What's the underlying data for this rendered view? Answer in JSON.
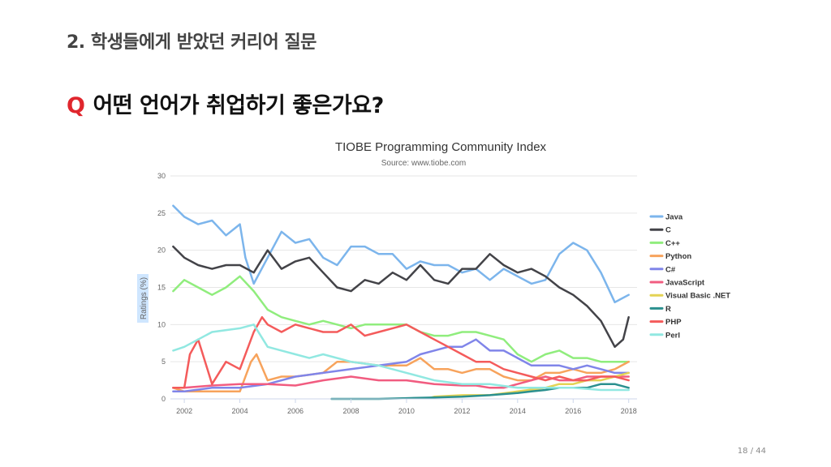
{
  "slide": {
    "heading": "2. 학생들에게 받았던 커리어 질문",
    "question_mark": "Q",
    "question_text": "어떤 언어가 취업하기 좋은가요?",
    "page_current": "18",
    "page_separator": "/",
    "page_total": "44"
  },
  "colors": {
    "question_mark": "#e0262d",
    "Java": "#7cb5ec",
    "C": "#434348",
    "C++": "#90ed7d",
    "Python": "#f7a35c",
    "C#": "#8085e9",
    "JavaScript": "#f15c80",
    "Visual Basic .NET": "#e4d354",
    "R": "#2b908f",
    "PHP": "#f45b5b",
    "Perl": "#91e8e1"
  },
  "chart_data": {
    "type": "line",
    "title": "TIOBE Programming Community Index",
    "subtitle": "Source: www.tiobe.com",
    "xlabel": "",
    "ylabel": "Ratings (%)",
    "xlim": [
      2001.5,
      2018.3
    ],
    "ylim": [
      0,
      30
    ],
    "x_ticks": [
      2002,
      2004,
      2006,
      2008,
      2010,
      2012,
      2014,
      2016,
      2018
    ],
    "y_ticks": [
      0,
      5,
      10,
      15,
      20,
      25,
      30
    ],
    "grid": true,
    "legend_position": "right",
    "series": [
      {
        "name": "Java",
        "color": "#7cb5ec",
        "x": [
          2001.6,
          2002,
          2002.5,
          2003,
          2003.5,
          2004,
          2004.2,
          2004.5,
          2005,
          2005.5,
          2006,
          2006.5,
          2007,
          2007.5,
          2008,
          2008.5,
          2009,
          2009.5,
          2010,
          2010.5,
          2011,
          2011.5,
          2012,
          2012.5,
          2013,
          2013.5,
          2014,
          2014.5,
          2015,
          2015.5,
          2016,
          2016.5,
          2017,
          2017.5,
          2018
        ],
        "values": [
          26,
          24.5,
          23.5,
          24,
          22,
          23.5,
          19,
          15.5,
          19,
          22.5,
          21,
          21.5,
          19,
          18,
          20.5,
          20.5,
          19.5,
          19.5,
          17.5,
          18.5,
          18,
          18,
          17,
          17.5,
          16,
          17.5,
          16.5,
          15.5,
          16,
          19.5,
          21,
          20,
          17,
          13,
          14
        ]
      },
      {
        "name": "C",
        "color": "#434348",
        "x": [
          2001.6,
          2002,
          2002.5,
          2003,
          2003.5,
          2004,
          2004.5,
          2005,
          2005.5,
          2006,
          2006.5,
          2007,
          2007.5,
          2008,
          2008.5,
          2009,
          2009.5,
          2010,
          2010.5,
          2011,
          2011.5,
          2012,
          2012.5,
          2013,
          2013.5,
          2014,
          2014.5,
          2015,
          2015.5,
          2016,
          2016.5,
          2017,
          2017.5,
          2017.8,
          2018
        ],
        "values": [
          20.5,
          19,
          18,
          17.5,
          18,
          18,
          17,
          20,
          17.5,
          18.5,
          19,
          17,
          15,
          14.5,
          16,
          15.5,
          17,
          16,
          18,
          16,
          15.5,
          17.5,
          17.5,
          19.5,
          18,
          17,
          17.5,
          16.5,
          15,
          14,
          12.5,
          10.5,
          7,
          8,
          11
        ]
      },
      {
        "name": "C++",
        "color": "#90ed7d",
        "x": [
          2001.6,
          2002,
          2002.5,
          2003,
          2003.5,
          2004,
          2004.5,
          2005,
          2005.5,
          2006,
          2006.5,
          2007,
          2007.5,
          2008,
          2008.5,
          2009,
          2009.5,
          2010,
          2010.5,
          2011,
          2011.5,
          2012,
          2012.5,
          2013,
          2013.5,
          2014,
          2014.5,
          2015,
          2015.5,
          2016,
          2016.5,
          2017,
          2017.5,
          2018
        ],
        "values": [
          14.5,
          16,
          15,
          14,
          15,
          16.5,
          14.5,
          12,
          11,
          10.5,
          10,
          10.5,
          10,
          9.5,
          10,
          10,
          10,
          10,
          9,
          8.5,
          8.5,
          9,
          9,
          8.5,
          8,
          6,
          5,
          6,
          6.5,
          5.5,
          5.5,
          5,
          5,
          5
        ]
      },
      {
        "name": "Python",
        "color": "#f7a35c",
        "x": [
          2001.6,
          2002,
          2003,
          2004,
          2004.4,
          2004.6,
          2005,
          2005.5,
          2006,
          2007,
          2007.5,
          2008,
          2009,
          2010,
          2010.5,
          2011,
          2011.5,
          2012,
          2012.5,
          2013,
          2013.5,
          2014,
          2014.5,
          2015,
          2015.5,
          2016,
          2016.5,
          2017,
          2017.5,
          2018
        ],
        "values": [
          1.5,
          1,
          1,
          1,
          5,
          6,
          2.5,
          3,
          3,
          3.5,
          5,
          5,
          4.5,
          4.5,
          5.5,
          4,
          4,
          3.5,
          4,
          4,
          3,
          2.5,
          2.5,
          3.5,
          3.5,
          4,
          3.5,
          3.5,
          4,
          5
        ]
      },
      {
        "name": "C#",
        "color": "#8085e9",
        "x": [
          2001.6,
          2002,
          2003,
          2004,
          2005,
          2006,
          2007,
          2008,
          2009,
          2010,
          2010.5,
          2011,
          2011.5,
          2012,
          2012.5,
          2013,
          2013.5,
          2014,
          2014.5,
          2015,
          2015.5,
          2016,
          2016.5,
          2017,
          2017.5,
          2018
        ],
        "values": [
          1,
          1,
          1.5,
          1.5,
          2,
          3,
          3.5,
          4,
          4.5,
          5,
          6,
          6.5,
          7,
          7,
          8,
          6.5,
          6.5,
          5.5,
          4.5,
          4.5,
          4.5,
          4,
          4.5,
          4,
          3.5,
          3.5
        ]
      },
      {
        "name": "JavaScript",
        "color": "#f15c80",
        "x": [
          2001.6,
          2002,
          2003,
          2004,
          2005,
          2006,
          2007,
          2008,
          2009,
          2010,
          2011,
          2012,
          2012.5,
          2013,
          2013.5,
          2014,
          2014.5,
          2015,
          2015.5,
          2016,
          2016.5,
          2017,
          2017.5,
          2018
        ],
        "values": [
          1.5,
          1.5,
          1.8,
          2,
          2,
          1.8,
          2.5,
          3,
          2.5,
          2.5,
          2,
          1.8,
          1.8,
          1.5,
          1.5,
          2,
          2.5,
          3,
          2.5,
          2.5,
          3,
          3,
          3,
          3
        ]
      },
      {
        "name": "Visual Basic .NET",
        "color": "#e4d354",
        "x": [
          2010.8,
          2011,
          2012,
          2013,
          2014,
          2015,
          2015.5,
          2016,
          2016.5,
          2017,
          2017.5,
          2018
        ],
        "values": [
          0.1,
          0.3,
          0.5,
          0.5,
          1,
          1.5,
          2,
          2,
          2.5,
          2.5,
          3,
          3.5
        ]
      },
      {
        "name": "R",
        "color": "#2b908f",
        "x": [
          2007.3,
          2008,
          2009,
          2010,
          2011,
          2012,
          2013,
          2014,
          2014.5,
          2015,
          2015.5,
          2016,
          2016.5,
          2017,
          2017.5,
          2018
        ],
        "values": [
          0,
          0,
          0,
          0.1,
          0.2,
          0.3,
          0.5,
          0.8,
          1,
          1.2,
          1.5,
          1.5,
          1.5,
          2,
          2,
          1.5
        ]
      },
      {
        "name": "PHP",
        "color": "#f45b5b",
        "x": [
          2001.6,
          2002,
          2002.2,
          2002.5,
          2003,
          2003.5,
          2004,
          2004.5,
          2004.8,
          2005,
          2005.5,
          2006,
          2006.5,
          2007,
          2007.5,
          2008,
          2008.5,
          2009,
          2009.5,
          2010,
          2010.5,
          2011,
          2011.5,
          2012,
          2012.5,
          2013,
          2013.5,
          2014,
          2014.5,
          2015,
          2015.5,
          2016,
          2016.5,
          2017,
          2017.5,
          2018
        ],
        "values": [
          1.5,
          1.5,
          6,
          8,
          2,
          5,
          4,
          9,
          11,
          10,
          9,
          10,
          9.5,
          9,
          9,
          10,
          8.5,
          9,
          9.5,
          10,
          9,
          8,
          7,
          6,
          5,
          5,
          4,
          3.5,
          3,
          2.5,
          3,
          2.5,
          2.5,
          3,
          3,
          2.5
        ]
      },
      {
        "name": "Perl",
        "color": "#91e8e1",
        "x": [
          2001.6,
          2002,
          2003,
          2004,
          2004.5,
          2005,
          2005.5,
          2006,
          2006.5,
          2007,
          2008,
          2009,
          2010,
          2011,
          2012,
          2013,
          2014,
          2015,
          2016,
          2017,
          2018
        ],
        "values": [
          6.5,
          7,
          9,
          9.5,
          10,
          7,
          6.5,
          6,
          5.5,
          6,
          5,
          4.5,
          3.5,
          2.5,
          2,
          2,
          1.5,
          1.5,
          1.5,
          1.2,
          1.2
        ]
      }
    ]
  }
}
